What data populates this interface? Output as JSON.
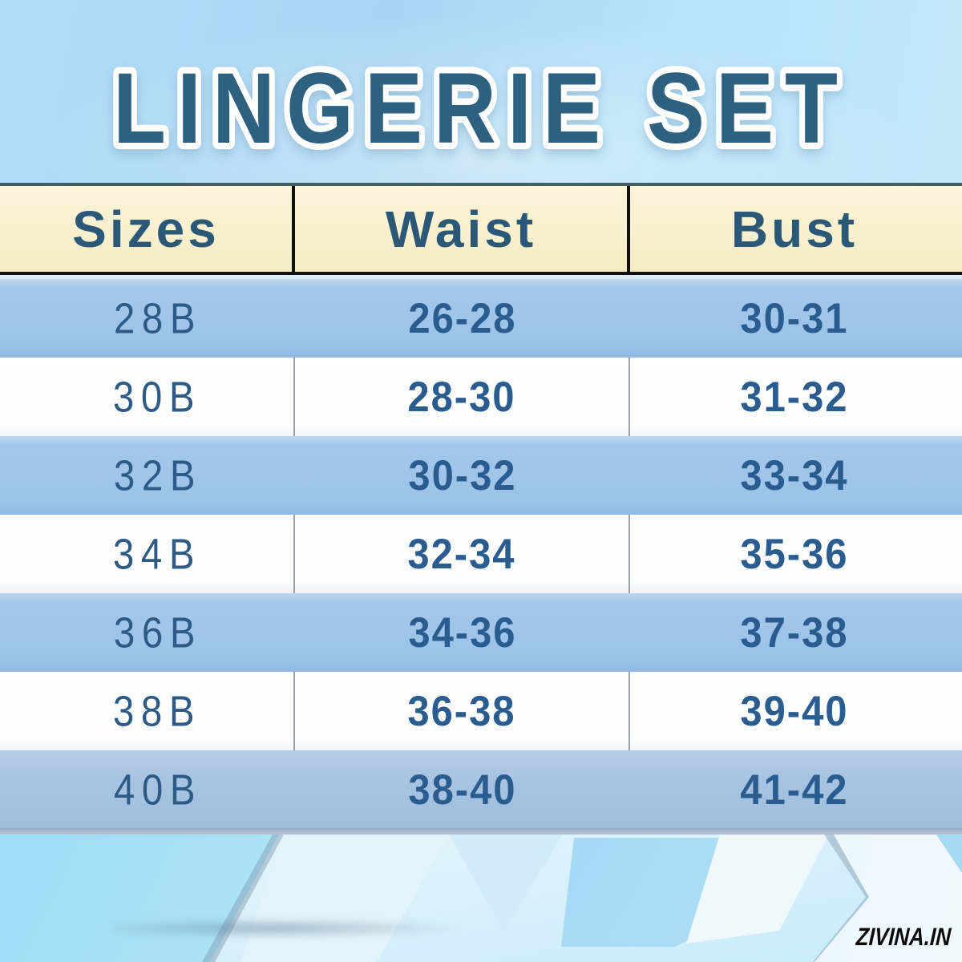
{
  "title": "LINGERIE SET",
  "watermark": "ZIVINA.IN",
  "size_chart": {
    "columns": [
      "Sizes",
      "Waist",
      "Bust"
    ],
    "rows": [
      {
        "size": "28B",
        "waist": "26-28",
        "bust": "30-31"
      },
      {
        "size": "30B",
        "waist": "28-30",
        "bust": "31-32"
      },
      {
        "size": "32B",
        "waist": "30-32",
        "bust": "33-34"
      },
      {
        "size": "34B",
        "waist": "32-34",
        "bust": "35-36"
      },
      {
        "size": "36B",
        "waist": "34-36",
        "bust": "37-38"
      },
      {
        "size": "38B",
        "waist": "36-38",
        "bust": "39-40"
      },
      {
        "size": "40B",
        "waist": "38-40",
        "bust": "41-42"
      }
    ]
  },
  "chart_data": {
    "type": "table",
    "title": "LINGERIE SET",
    "columns": [
      "Sizes",
      "Waist",
      "Bust"
    ],
    "rows": [
      [
        "28B",
        "26-28",
        "30-31"
      ],
      [
        "30B",
        "28-30",
        "31-32"
      ],
      [
        "32B",
        "30-32",
        "33-34"
      ],
      [
        "34B",
        "32-34",
        "35-36"
      ],
      [
        "36B",
        "34-36",
        "37-38"
      ],
      [
        "38B",
        "36-38",
        "39-40"
      ],
      [
        "40B",
        "38-40",
        "41-42"
      ]
    ],
    "legend_position": "none",
    "grid": false
  },
  "colors": {
    "title_text": "#2e607f",
    "title_outline": "#ffffff",
    "header_background": "#f9f0cf",
    "header_text": "#2a5876",
    "header_border": "#101010",
    "row_blue": "#9cc2e8",
    "row_white": "#fdfdfd",
    "row_text": "#2b5c90",
    "sky_blue": "#a9d5f3",
    "watermark_text": "#0b0b0b"
  }
}
